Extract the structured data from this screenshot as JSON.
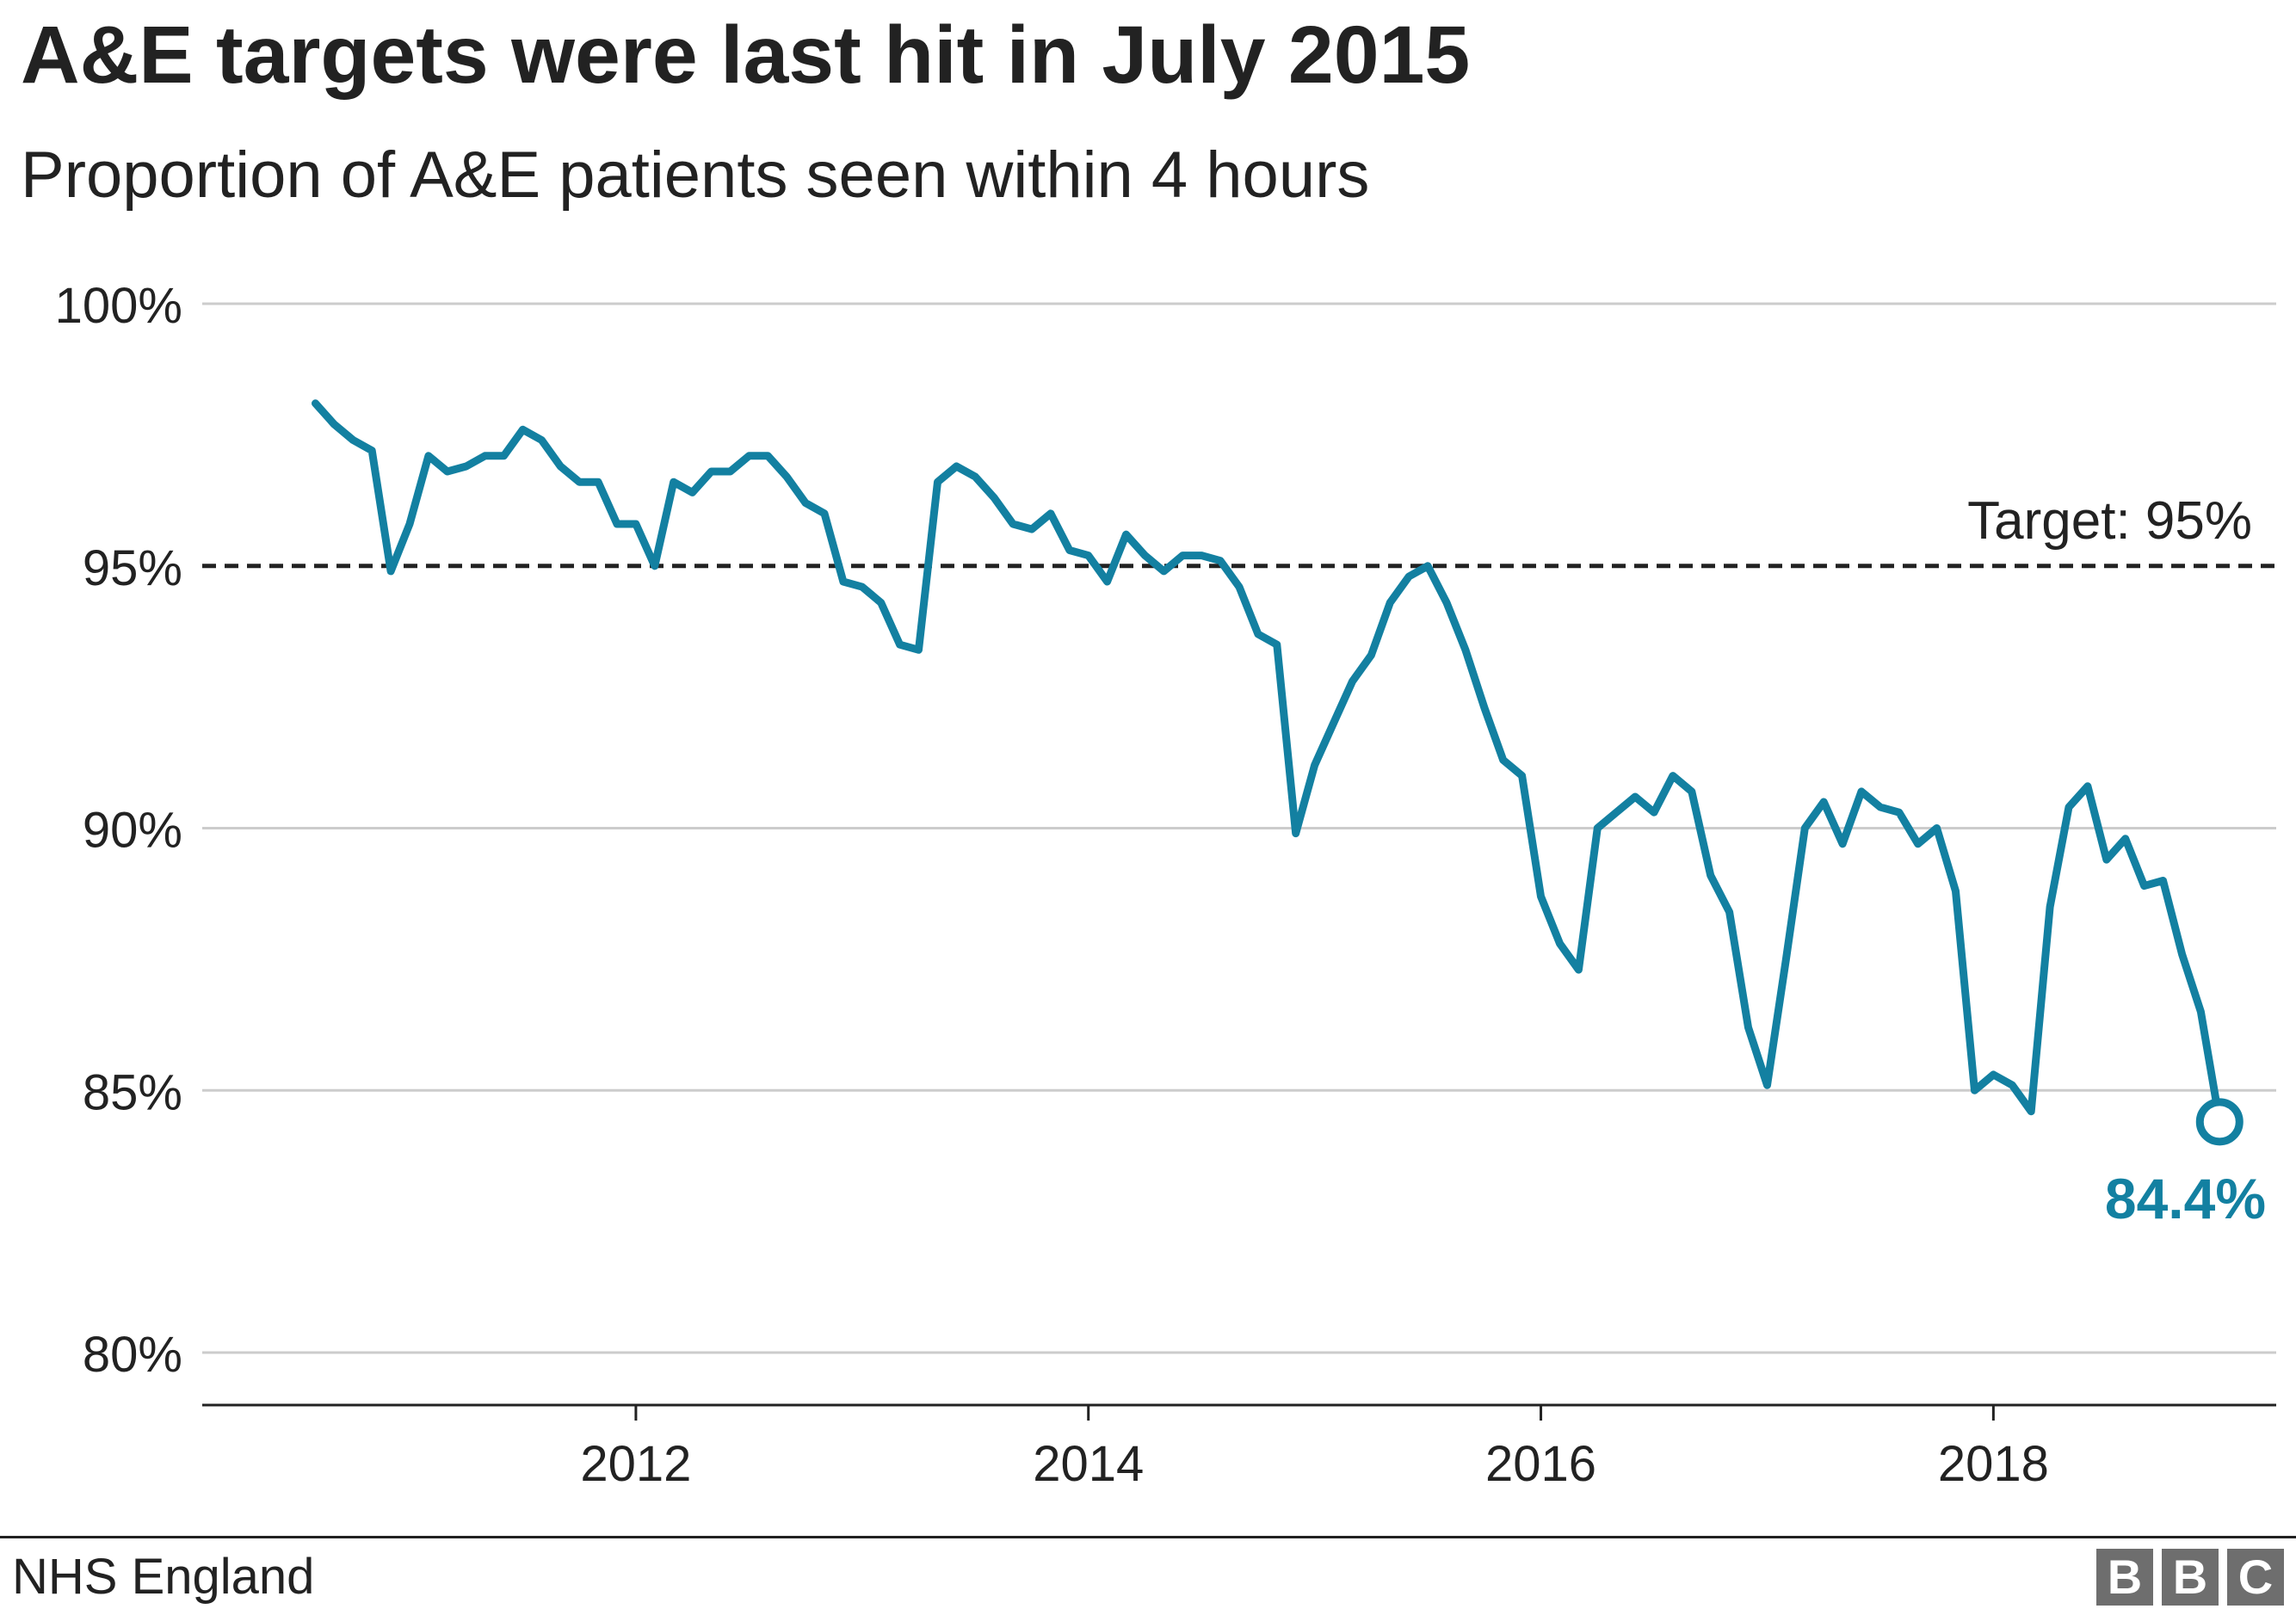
{
  "title": "A&E targets were last hit in July 2015",
  "subtitle": "Proportion of A&E patients seen within 4 hours",
  "source": "NHS England",
  "logo": [
    "B",
    "B",
    "C"
  ],
  "colors": {
    "series": "#1380A1",
    "target_line": "#222222",
    "grid": "#cccccc",
    "text": "#222222",
    "logo": "#6e6e6e"
  },
  "chart_data": {
    "type": "line",
    "title": "A&E targets were last hit in July 2015",
    "subtitle": "Proportion of A&E patients seen within 4 hours",
    "xlabel": "",
    "ylabel": "",
    "y_ticks": [
      "80%",
      "85%",
      "90%",
      "95%",
      "100%"
    ],
    "y_tick_values": [
      80,
      85,
      90,
      95,
      100
    ],
    "x_ticks": [
      "2012",
      "2014",
      "2016",
      "2018"
    ],
    "x_tick_values": [
      "2012-01",
      "2014-01",
      "2016-01",
      "2018-01"
    ],
    "xlim": [
      "2010-02",
      "2019-04"
    ],
    "ylim": [
      79,
      100
    ],
    "grid": "horizontal",
    "reference_line": {
      "value": 95,
      "label": "Target: 95%",
      "style": "dashed"
    },
    "end_label": "84.4%",
    "series": [
      {
        "x": [
          "2010-08",
          "2010-09",
          "2010-10",
          "2010-11",
          "2010-12",
          "2011-01",
          "2011-02",
          "2011-03",
          "2011-04",
          "2011-05",
          "2011-06",
          "2011-07",
          "2011-08",
          "2011-09",
          "2011-10",
          "2011-11",
          "2011-12",
          "2012-01",
          "2012-02",
          "2012-03",
          "2012-04",
          "2012-05",
          "2012-06",
          "2012-07",
          "2012-08",
          "2012-09",
          "2012-10",
          "2012-11",
          "2012-12",
          "2013-01",
          "2013-02",
          "2013-03",
          "2013-04",
          "2013-05",
          "2013-06",
          "2013-07",
          "2013-08",
          "2013-09",
          "2013-10",
          "2013-11",
          "2013-12",
          "2014-01",
          "2014-02",
          "2014-03",
          "2014-04",
          "2014-05",
          "2014-06",
          "2014-07",
          "2014-08",
          "2014-09",
          "2014-10",
          "2014-11",
          "2014-12",
          "2015-01",
          "2015-02",
          "2015-03",
          "2015-04",
          "2015-05",
          "2015-06",
          "2015-07",
          "2015-08",
          "2015-09",
          "2015-10",
          "2015-11",
          "2015-12",
          "2016-01",
          "2016-02",
          "2016-03",
          "2016-04",
          "2016-05",
          "2016-06",
          "2016-07",
          "2016-08",
          "2016-09",
          "2016-10",
          "2016-11",
          "2016-12",
          "2017-01",
          "2017-02",
          "2017-03",
          "2017-04",
          "2017-05",
          "2017-06",
          "2017-07",
          "2017-08",
          "2017-09",
          "2017-10",
          "2017-11",
          "2017-12",
          "2018-01",
          "2018-02",
          "2018-03",
          "2018-04",
          "2018-05",
          "2018-06",
          "2018-07",
          "2018-08",
          "2018-09",
          "2018-10",
          "2018-11",
          "2018-12",
          "2019-01"
        ],
        "values": [
          98.1,
          97.7,
          97.4,
          97.2,
          94.9,
          95.8,
          97.1,
          96.8,
          96.9,
          97.1,
          97.1,
          97.6,
          97.4,
          96.9,
          96.6,
          96.6,
          95.8,
          95.8,
          95.0,
          96.6,
          96.4,
          96.8,
          96.8,
          97.1,
          97.1,
          96.7,
          96.2,
          96.0,
          94.7,
          94.6,
          94.3,
          93.5,
          93.4,
          96.6,
          96.9,
          96.7,
          96.3,
          95.8,
          95.7,
          96.0,
          95.3,
          95.2,
          94.7,
          95.6,
          95.2,
          94.9,
          95.2,
          95.2,
          95.1,
          94.6,
          93.7,
          93.5,
          89.9,
          91.2,
          92.0,
          92.8,
          93.3,
          94.3,
          94.8,
          95.0,
          94.3,
          93.4,
          92.3,
          91.3,
          91.0,
          88.7,
          87.8,
          87.3,
          90.0,
          90.3,
          90.6,
          90.3,
          91.0,
          90.7,
          89.1,
          88.4,
          86.2,
          85.1,
          87.5,
          90.0,
          90.5,
          89.7,
          90.7,
          90.4,
          90.3,
          89.7,
          90.0,
          88.8,
          85.0,
          85.3,
          85.1,
          84.6,
          88.5,
          90.4,
          90.8,
          89.4,
          89.8,
          88.9,
          89.0,
          87.6,
          86.5,
          84.4
        ]
      }
    ]
  }
}
